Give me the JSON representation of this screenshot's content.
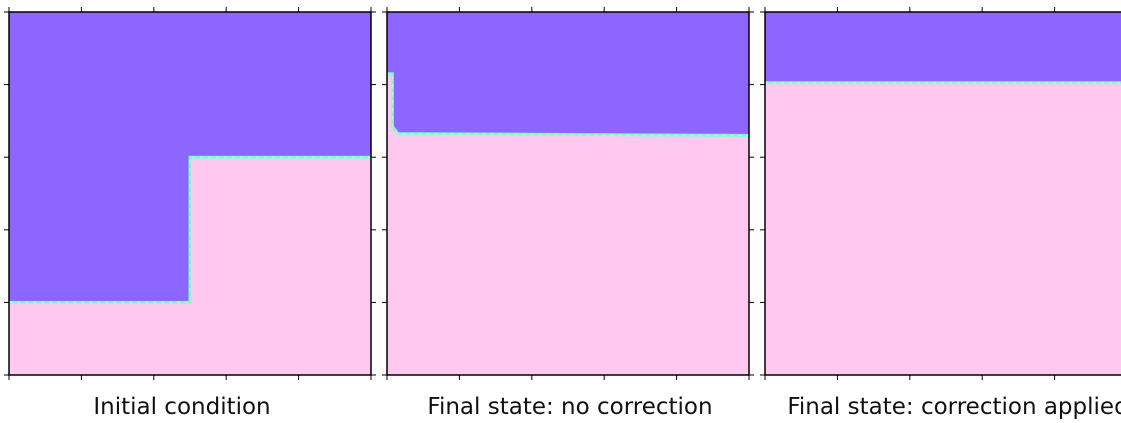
{
  "colors": {
    "upper_phase": "#8c66ff",
    "lower_phase": "#ffc8f0",
    "frame": "#000000",
    "interface_fringe": [
      "#7fffd4",
      "#66e0a0",
      "#c8ff9a",
      "#ffffb0",
      "#a0fff0",
      "#b0e7ff"
    ]
  },
  "panels": [
    {
      "caption": "Initial condition",
      "interface_profile": [
        [
          0,
          0.2
        ],
        [
          0.5,
          0.2
        ],
        [
          0.5,
          0.6
        ],
        [
          1,
          0.6
        ]
      ]
    },
    {
      "caption": "Final state: no correction",
      "interface_profile": [
        [
          0,
          0.83
        ],
        [
          0.015,
          0.83
        ],
        [
          0.015,
          0.685
        ],
        [
          0.03,
          0.665
        ],
        [
          1,
          0.66
        ]
      ]
    },
    {
      "caption": "Final state: correction applied",
      "interface_profile": [
        [
          0,
          0.805
        ],
        [
          1,
          0.805
        ]
      ]
    }
  ]
}
